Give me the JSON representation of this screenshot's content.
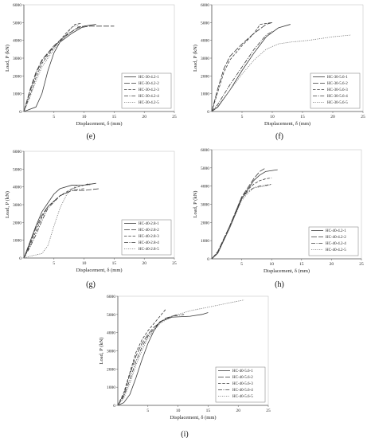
{
  "chart_data": [
    {
      "type": "line",
      "caption": "(e)",
      "xlabel": "Displacement, δ (mm)",
      "ylabel": "Load, P (kN)",
      "xlim": [
        0,
        25
      ],
      "ylim": [
        0,
        6000
      ],
      "xticks": [
        5,
        10,
        15,
        20,
        25
      ],
      "yticks": [
        0,
        1000,
        2000,
        3000,
        4000,
        5000,
        6000
      ],
      "legend_position": "bottom-right",
      "series": [
        {
          "name": "HC-30-4.2-1",
          "dash": "solid",
          "points": [
            [
              0,
              0
            ],
            [
              2,
              250
            ],
            [
              3,
              1000
            ],
            [
              4,
              2300
            ],
            [
              5,
              3300
            ],
            [
              6,
              3900
            ],
            [
              8,
              4400
            ],
            [
              10,
              4800
            ],
            [
              12,
              4900
            ]
          ]
        },
        {
          "name": "HC-30-4.2-2",
          "dash": "longdash",
          "points": [
            [
              0,
              0
            ],
            [
              1,
              1200
            ],
            [
              2,
              2200
            ],
            [
              3,
              2900
            ],
            [
              5,
              3700
            ],
            [
              7,
              4300
            ],
            [
              9,
              4700
            ],
            [
              11,
              4800
            ],
            [
              15,
              4800
            ]
          ]
        },
        {
          "name": "HC-30-4.2-3",
          "dash": "dash",
          "points": [
            [
              0,
              0
            ],
            [
              1,
              900
            ],
            [
              2,
              1900
            ],
            [
              3,
              2700
            ],
            [
              5,
              3600
            ],
            [
              7,
              4400
            ],
            [
              8.5,
              4900
            ],
            [
              9.5,
              4950
            ]
          ]
        },
        {
          "name": "HC-30-4.2-4",
          "dash": "dashdot",
          "points": [
            [
              0,
              0
            ],
            [
              1,
              1100
            ],
            [
              2,
              2100
            ],
            [
              3,
              2850
            ],
            [
              5,
              3650
            ],
            [
              7,
              4250
            ],
            [
              9,
              4750
            ],
            [
              10,
              4800
            ]
          ]
        },
        {
          "name": "HC-30-4.2-5",
          "dash": "dot",
          "points": [
            [
              0,
              0
            ],
            [
              1,
              800
            ],
            [
              2,
              1700
            ],
            [
              3,
              2500
            ],
            [
              5,
              3500
            ],
            [
              7,
              4300
            ],
            [
              8,
              4750
            ],
            [
              9,
              4850
            ]
          ]
        }
      ]
    },
    {
      "type": "line",
      "caption": "(f)",
      "xlabel": "Displacement, δ (mm)",
      "ylabel": "Load, P (kN)",
      "xlim": [
        0,
        25
      ],
      "ylim": [
        0,
        6000
      ],
      "xticks": [
        5,
        10,
        15,
        20,
        25
      ],
      "yticks": [
        0,
        1000,
        2000,
        3000,
        4000,
        5000,
        6000
      ],
      "legend_position": "bottom-right",
      "series": [
        {
          "name": "HC-30-5.6-1",
          "dash": "solid",
          "points": [
            [
              0,
              0
            ],
            [
              1,
              250
            ],
            [
              3,
              1200
            ],
            [
              5,
              2300
            ],
            [
              7,
              3300
            ],
            [
              9,
              4200
            ],
            [
              11,
              4700
            ],
            [
              13,
              4900
            ]
          ]
        },
        {
          "name": "HC-30-5.6-2",
          "dash": "longdash",
          "points": [
            [
              0,
              0
            ],
            [
              1,
              1300
            ],
            [
              2,
              2400
            ],
            [
              3,
              3100
            ],
            [
              5,
              3800
            ],
            [
              7,
              4400
            ],
            [
              9,
              4900
            ],
            [
              10,
              5000
            ]
          ]
        },
        {
          "name": "HC-30-5.6-3",
          "dash": "dash",
          "points": [
            [
              0,
              0
            ],
            [
              1,
              1100
            ],
            [
              2,
              2200
            ],
            [
              3,
              2900
            ],
            [
              5,
              3700
            ],
            [
              7,
              4400
            ],
            [
              8,
              4900
            ],
            [
              10,
              5000
            ]
          ]
        },
        {
          "name": "HC-30-5.6-4",
          "dash": "dashdot",
          "points": [
            [
              0,
              0
            ],
            [
              1,
              400
            ],
            [
              3,
              1500
            ],
            [
              5,
              2500
            ],
            [
              7,
              3500
            ],
            [
              9,
              4300
            ],
            [
              10,
              4500
            ]
          ]
        },
        {
          "name": "HC-30-5.6-5",
          "dash": "dot",
          "points": [
            [
              0,
              0
            ],
            [
              1,
              300
            ],
            [
              3,
              1200
            ],
            [
              5,
              2100
            ],
            [
              7,
              2900
            ],
            [
              9,
              3500
            ],
            [
              11,
              3800
            ],
            [
              13,
              3900
            ],
            [
              16,
              4000
            ],
            [
              20,
              4200
            ],
            [
              23,
              4300
            ]
          ]
        }
      ]
    },
    {
      "type": "line",
      "caption": "(g)",
      "xlabel": "Displacement, δ (mm)",
      "ylabel": "Load, P (kN)",
      "xlim": [
        0,
        25
      ],
      "ylim": [
        0,
        6000
      ],
      "xticks": [
        5,
        10,
        15,
        20,
        25
      ],
      "yticks": [
        0,
        1000,
        2000,
        3000,
        4000,
        5000,
        6000
      ],
      "legend_position": "bottom-right",
      "series": [
        {
          "name": "HC-40-2.8-1",
          "dash": "solid",
          "points": [
            [
              0,
              0
            ],
            [
              1,
              900
            ],
            [
              2,
              1800
            ],
            [
              3,
              2600
            ],
            [
              4,
              3100
            ],
            [
              5,
              3600
            ],
            [
              6,
              3900
            ],
            [
              8,
              4100
            ],
            [
              10,
              4100
            ],
            [
              12,
              4200
            ]
          ]
        },
        {
          "name": "HC-40-2.8-2",
          "dash": "longdash",
          "points": [
            [
              0,
              0
            ],
            [
              1,
              800
            ],
            [
              2,
              1700
            ],
            [
              3,
              2400
            ],
            [
              4,
              2900
            ],
            [
              6,
              3500
            ],
            [
              8,
              3800
            ],
            [
              10,
              3800
            ],
            [
              12.5,
              3900
            ]
          ]
        },
        {
          "name": "HC-40-2.8-3",
          "dash": "dash",
          "points": [
            [
              0,
              0
            ],
            [
              1,
              700
            ],
            [
              2,
              1500
            ],
            [
              3,
              2300
            ],
            [
              4,
              2900
            ],
            [
              6,
              3500
            ],
            [
              8,
              3900
            ],
            [
              10,
              4100
            ],
            [
              11,
              4200
            ]
          ]
        },
        {
          "name": "HC-40-2.8-4",
          "dash": "dashdot",
          "points": [
            [
              0,
              0
            ],
            [
              1,
              600
            ],
            [
              2,
              1300
            ],
            [
              3,
              2100
            ],
            [
              4,
              2800
            ],
            [
              6,
              3500
            ],
            [
              8,
              3800
            ],
            [
              10,
              3900
            ]
          ]
        },
        {
          "name": "HC-40-2.8-5",
          "dash": "dot",
          "points": [
            [
              0,
              0
            ],
            [
              1,
              100
            ],
            [
              3,
              250
            ],
            [
              4,
              700
            ],
            [
              5,
              1800
            ],
            [
              6,
              2800
            ],
            [
              7,
              3500
            ],
            [
              8,
              3900
            ],
            [
              9,
              4100
            ],
            [
              11,
              4100
            ]
          ]
        }
      ]
    },
    {
      "type": "line",
      "caption": "(h)",
      "xlabel": "Displacement, δ (mm)",
      "ylabel": "Load, P (kN)",
      "xlim": [
        0,
        25
      ],
      "ylim": [
        0,
        6000
      ],
      "xticks": [
        5,
        10,
        15,
        20,
        25
      ],
      "yticks": [
        0,
        1000,
        2000,
        3000,
        4000,
        5000,
        6000
      ],
      "legend_position": "bottom-right",
      "series": [
        {
          "name": "HC-40-4.2-1",
          "dash": "solid",
          "points": [
            [
              0,
              0
            ],
            [
              1,
              300
            ],
            [
              3,
              1700
            ],
            [
              5,
              3300
            ],
            [
              6,
              3800
            ],
            [
              7,
              4300
            ],
            [
              8,
              4600
            ],
            [
              9,
              4800
            ],
            [
              11,
              4900
            ]
          ]
        },
        {
          "name": "HC-40-4.2-2",
          "dash": "longdash",
          "points": [
            [
              0,
              0
            ],
            [
              1,
              400
            ],
            [
              3,
              1800
            ],
            [
              5,
              3400
            ],
            [
              6,
              3900
            ],
            [
              7,
              4400
            ],
            [
              8,
              4800
            ],
            [
              9,
              5000
            ]
          ]
        },
        {
          "name": "HC-40-4.2-4",
          "dash": "dashdot",
          "points": [
            [
              0,
              0
            ],
            [
              1,
              350
            ],
            [
              3,
              1800
            ],
            [
              5,
              3300
            ],
            [
              6,
              3700
            ],
            [
              7,
              3900
            ],
            [
              8,
              4000
            ],
            [
              10,
              4100
            ]
          ]
        },
        {
          "name": "HC-40-4.2-5",
          "dash": "dot",
          "points": [
            [
              0,
              0
            ],
            [
              1,
              300
            ],
            [
              3,
              1700
            ],
            [
              5,
              3200
            ],
            [
              6,
              3600
            ],
            [
              7,
              3900
            ],
            [
              9,
              4000
            ],
            [
              10,
              4100
            ]
          ]
        },
        {
          "name": "",
          "dash": "dash",
          "points": [
            [
              0,
              0
            ],
            [
              1,
              350
            ],
            [
              3,
              1800
            ],
            [
              5,
              3400
            ],
            [
              6,
              3800
            ],
            [
              7,
              4100
            ],
            [
              8,
              4300
            ],
            [
              9,
              4400
            ],
            [
              10,
              4450
            ]
          ]
        }
      ]
    },
    {
      "type": "line",
      "caption": "(i)",
      "xlabel": "Displacement, δ (mm)",
      "ylabel": "Load, P (kN)",
      "xlim": [
        0,
        25
      ],
      "ylim": [
        0,
        6000
      ],
      "xticks": [
        5,
        10,
        15,
        20,
        25
      ],
      "yticks": [
        0,
        1000,
        2000,
        3000,
        4000,
        5000,
        6000
      ],
      "legend_position": "bottom-right",
      "series": [
        {
          "name": "HC-40-5.6-1",
          "dash": "solid",
          "points": [
            [
              0,
              0
            ],
            [
              1,
              150
            ],
            [
              2,
              600
            ],
            [
              3,
              1500
            ],
            [
              4,
              2500
            ],
            [
              5,
              3400
            ],
            [
              6,
              4100
            ],
            [
              7,
              4600
            ],
            [
              9,
              4850
            ],
            [
              12,
              4900
            ],
            [
              14,
              5000
            ],
            [
              15,
              5100
            ]
          ]
        },
        {
          "name": "HC-40-5.6-2",
          "dash": "longdash",
          "points": [
            [
              0,
              0
            ],
            [
              1,
              600
            ],
            [
              2,
              1700
            ],
            [
              3,
              2700
            ],
            [
              4,
              3400
            ],
            [
              5,
              3900
            ],
            [
              6,
              4300
            ],
            [
              8,
              4800
            ],
            [
              10,
              5000
            ]
          ]
        },
        {
          "name": "HC-40-5.6-3",
          "dash": "dash",
          "points": [
            [
              0,
              0
            ],
            [
              1,
              700
            ],
            [
              2,
              1800
            ],
            [
              3,
              2900
            ],
            [
              4,
              3600
            ],
            [
              5,
              4100
            ],
            [
              6,
              4500
            ],
            [
              7,
              4900
            ],
            [
              8,
              5300
            ]
          ]
        },
        {
          "name": "HC-40-5.6-4",
          "dash": "dashdot",
          "points": [
            [
              0,
              0
            ],
            [
              1,
              500
            ],
            [
              2,
              1400
            ],
            [
              3,
              2400
            ],
            [
              4,
              3200
            ],
            [
              5,
              3800
            ],
            [
              7,
              4600
            ],
            [
              9,
              4900
            ],
            [
              11,
              5000
            ]
          ]
        },
        {
          "name": "HC-40-5.6-5",
          "dash": "dot",
          "points": [
            [
              0,
              0
            ],
            [
              1,
              400
            ],
            [
              2,
              1200
            ],
            [
              3,
              2200
            ],
            [
              4,
              3000
            ],
            [
              5,
              3700
            ],
            [
              7,
              4500
            ],
            [
              9,
              4900
            ],
            [
              12,
              5200
            ],
            [
              15,
              5400
            ],
            [
              18,
              5600
            ],
            [
              21,
              5800
            ]
          ]
        }
      ]
    }
  ],
  "panel_colors": {
    "axis": "#555555",
    "line": "#3a3a3a",
    "grid": "#dddddd"
  }
}
